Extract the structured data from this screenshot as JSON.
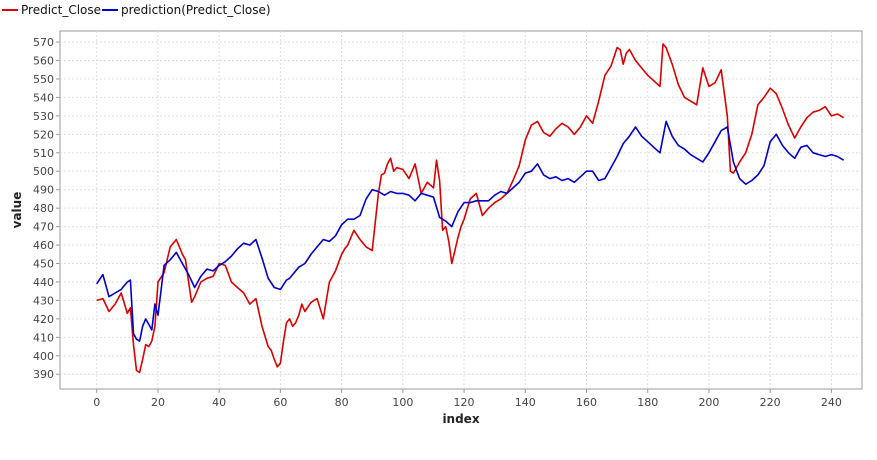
{
  "chart_data": {
    "type": "line",
    "xlabel": "index",
    "ylabel": "value",
    "xlim": [
      -12,
      250
    ],
    "ylim": [
      382,
      576
    ],
    "xticks": [
      0,
      20,
      40,
      60,
      80,
      100,
      120,
      140,
      160,
      180,
      200,
      220,
      240
    ],
    "yticks": [
      390,
      400,
      410,
      420,
      430,
      440,
      450,
      460,
      470,
      480,
      490,
      500,
      510,
      520,
      530,
      540,
      550,
      560,
      570
    ],
    "grid": true,
    "legend_position": "top-left",
    "series": [
      {
        "name": "Predict_Close",
        "color": "#dd0000",
        "x": [
          0,
          2,
          4,
          6,
          8,
          10,
          11,
          12,
          13,
          14,
          15,
          16,
          17,
          18,
          19,
          20,
          22,
          24,
          25,
          26,
          27,
          28,
          29,
          30,
          31,
          32,
          34,
          36,
          38,
          40,
          42,
          44,
          46,
          48,
          50,
          52,
          54,
          56,
          57,
          58,
          59,
          60,
          61,
          62,
          63,
          64,
          65,
          66,
          67,
          68,
          70,
          72,
          74,
          76,
          78,
          80,
          81,
          82,
          84,
          86,
          88,
          90,
          92,
          93,
          94,
          95,
          96,
          97,
          98,
          100,
          102,
          104,
          106,
          108,
          110,
          111,
          112,
          113,
          114,
          115,
          116,
          117,
          118,
          119,
          120,
          122,
          124,
          126,
          128,
          130,
          132,
          134,
          136,
          138,
          140,
          142,
          144,
          146,
          148,
          150,
          152,
          154,
          156,
          158,
          160,
          162,
          164,
          166,
          168,
          170,
          171,
          172,
          173,
          174,
          176,
          178,
          180,
          182,
          184,
          185,
          186,
          188,
          190,
          192,
          194,
          196,
          198,
          200,
          202,
          204,
          206,
          207,
          208,
          209,
          210,
          212,
          214,
          216,
          218,
          220,
          222,
          224,
          226,
          228,
          230,
          232,
          234,
          236,
          238,
          240,
          242,
          244
        ],
        "values": [
          430,
          431,
          424,
          428,
          434,
          423,
          426,
          406,
          392,
          391,
          398,
          406,
          405,
          408,
          416,
          440,
          445,
          459,
          461,
          463,
          459,
          455,
          452,
          440,
          429,
          432,
          440,
          442,
          443,
          450,
          449,
          440,
          437,
          434,
          428,
          431,
          416,
          405,
          403,
          398,
          394,
          396,
          408,
          418,
          420,
          416,
          418,
          422,
          428,
          424,
          429,
          431,
          420,
          440,
          446,
          455,
          458,
          460,
          468,
          463,
          459,
          457,
          488,
          498,
          499,
          504,
          507,
          500,
          502,
          501,
          496,
          504,
          488,
          494,
          491,
          506,
          495,
          468,
          470,
          462,
          450,
          457,
          464,
          470,
          474,
          485,
          488,
          476,
          480,
          483,
          485,
          488,
          495,
          503,
          517,
          525,
          527,
          521,
          519,
          523,
          526,
          524,
          520,
          524,
          530,
          526,
          538,
          552,
          557,
          567,
          566,
          558,
          564,
          566,
          560,
          556,
          552,
          549,
          546,
          569,
          567,
          558,
          547,
          540,
          538,
          536,
          556,
          546,
          548,
          555,
          530,
          500,
          499,
          502,
          505,
          510,
          520,
          536,
          540,
          545,
          542,
          534,
          525,
          518,
          524,
          529,
          532,
          533,
          535,
          530,
          531,
          529
        ]
      },
      {
        "name": "prediction(Predict_Close)",
        "color": "#0000cc",
        "x": [
          0,
          2,
          4,
          6,
          8,
          10,
          11,
          12,
          13,
          14,
          15,
          16,
          17,
          18,
          19,
          20,
          22,
          24,
          26,
          28,
          30,
          32,
          34,
          36,
          38,
          40,
          42,
          44,
          46,
          48,
          50,
          52,
          54,
          56,
          58,
          60,
          62,
          63,
          64,
          66,
          68,
          70,
          72,
          74,
          76,
          78,
          80,
          82,
          84,
          86,
          88,
          90,
          92,
          94,
          96,
          98,
          100,
          102,
          104,
          106,
          108,
          110,
          112,
          114,
          116,
          118,
          120,
          122,
          124,
          126,
          128,
          130,
          132,
          134,
          136,
          138,
          140,
          142,
          144,
          146,
          148,
          150,
          152,
          154,
          156,
          158,
          160,
          162,
          164,
          166,
          168,
          170,
          172,
          174,
          176,
          178,
          180,
          182,
          184,
          186,
          188,
          190,
          192,
          194,
          196,
          198,
          200,
          202,
          204,
          206,
          208,
          210,
          212,
          214,
          216,
          218,
          220,
          222,
          224,
          226,
          228,
          230,
          232,
          234,
          236,
          238,
          240,
          242,
          244
        ],
        "values": [
          439,
          444,
          432,
          434,
          436,
          440,
          441,
          412,
          409,
          408,
          416,
          420,
          417,
          414,
          428,
          422,
          449,
          452,
          456,
          450,
          444,
          437,
          443,
          447,
          446,
          449,
          451,
          454,
          458,
          461,
          460,
          463,
          453,
          442,
          437,
          436,
          441,
          442,
          444,
          448,
          450,
          455,
          459,
          463,
          462,
          465,
          471,
          474,
          474,
          476,
          485,
          490,
          489,
          487,
          489,
          488,
          488,
          487,
          484,
          488,
          487,
          486,
          475,
          473,
          470,
          478,
          483,
          483,
          484,
          484,
          484,
          487,
          489,
          488,
          491,
          494,
          499,
          500,
          504,
          498,
          496,
          497,
          495,
          496,
          494,
          497,
          500,
          500,
          495,
          496,
          502,
          508,
          515,
          519,
          524,
          519,
          516,
          513,
          510,
          527,
          519,
          514,
          512,
          509,
          507,
          505,
          510,
          516,
          522,
          524,
          505,
          496,
          493,
          495,
          498,
          503,
          516,
          520,
          514,
          510,
          507,
          513,
          514,
          510,
          509,
          508,
          509,
          508,
          506
        ]
      }
    ]
  }
}
